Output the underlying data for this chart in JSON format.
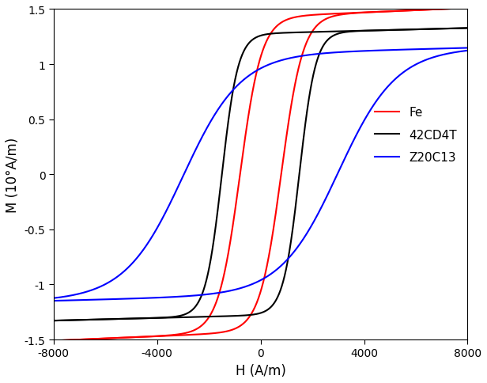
{
  "title": "",
  "xlabel": "H (A/m)",
  "ylabel": "M (10°A/m)",
  "xlim": [
    -8000,
    8000
  ],
  "ylim": [
    -1.5,
    1.5
  ],
  "xticks": [
    -8000,
    -4000,
    0,
    4000,
    8000
  ],
  "yticks": [
    -1.5,
    -1.0,
    -0.5,
    0.0,
    0.5,
    1.0,
    1.5
  ],
  "xtick_labels": [
    "-8000",
    "-4000",
    "0",
    "4000",
    "8000"
  ],
  "ytick_labels": [
    "-1.5",
    "-1",
    "-0.5",
    "0",
    "0.5",
    "1",
    "1.5"
  ],
  "curves": [
    {
      "label": "Fe",
      "color": "red",
      "Ms": 1.43,
      "Hc": 800,
      "k": 0.0012,
      "sat_slope": 1e-05
    },
    {
      "label": "42CD4T",
      "color": "black",
      "Ms": 1.28,
      "Hc": 1500,
      "k": 0.0016,
      "sat_slope": 6e-06
    },
    {
      "label": "Z20C13",
      "color": "blue",
      "Ms": 1.1,
      "Hc": 3000,
      "k": 0.00045,
      "sat_slope": 6e-06
    }
  ],
  "linewidth": 1.5,
  "legend_fontsize": 11,
  "axis_fontsize": 12,
  "tick_fontsize": 10
}
